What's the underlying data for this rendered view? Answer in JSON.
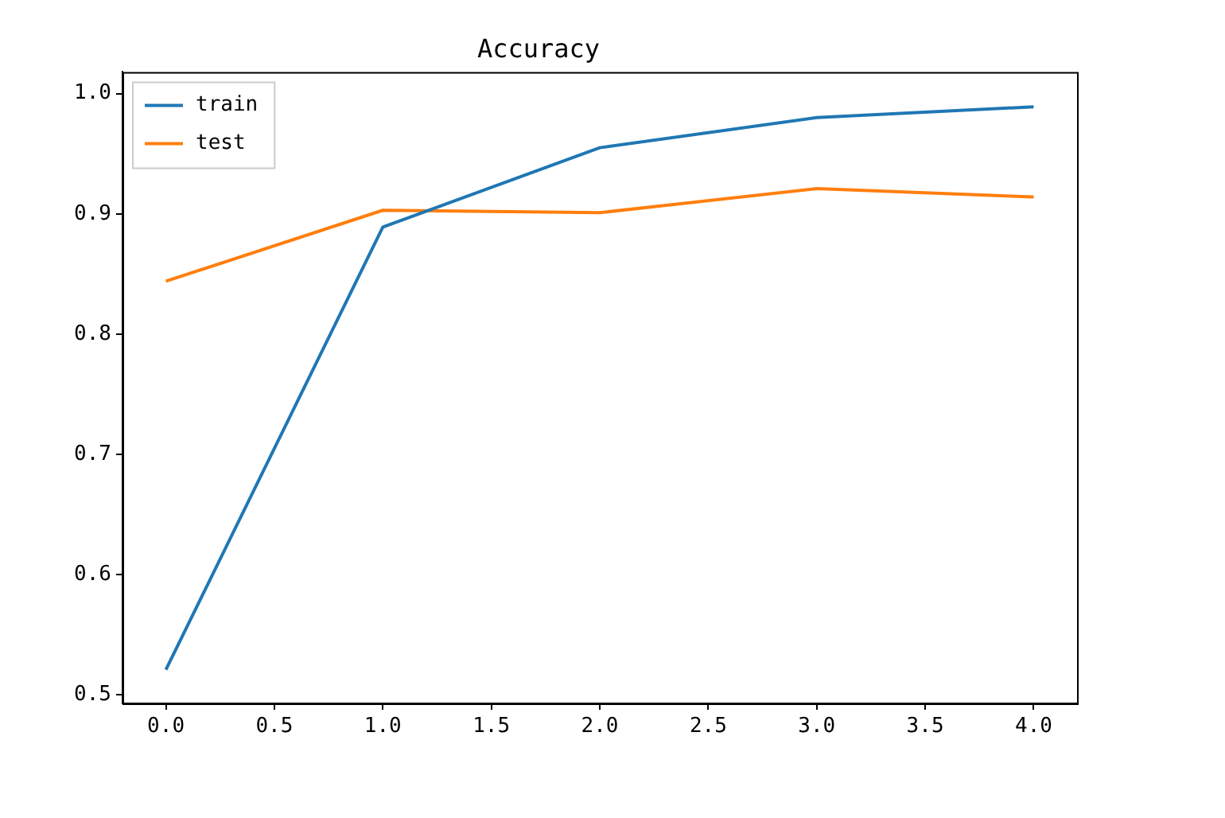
{
  "chart_data": {
    "type": "line",
    "title": "Accuracy",
    "x": [
      0,
      1,
      2,
      3,
      4
    ],
    "series": [
      {
        "name": "train",
        "color": "#1f77b4",
        "values": [
          0.521,
          0.889,
          0.955,
          0.98,
          0.989
        ]
      },
      {
        "name": "test",
        "color": "#ff7f0e",
        "values": [
          0.844,
          0.903,
          0.901,
          0.921,
          0.914
        ]
      }
    ],
    "xlim": [
      -0.2,
      4.2
    ],
    "ylim": [
      0.493,
      1.018
    ],
    "xticks": [
      {
        "value": 0,
        "label": "0.0"
      },
      {
        "value": 0.5,
        "label": "0.5"
      },
      {
        "value": 1,
        "label": "1.0"
      },
      {
        "value": 1.5,
        "label": "1.5"
      },
      {
        "value": 2,
        "label": "2.0"
      },
      {
        "value": 2.5,
        "label": "2.5"
      },
      {
        "value": 3,
        "label": "3.0"
      },
      {
        "value": 3.5,
        "label": "3.5"
      },
      {
        "value": 4,
        "label": "4.0"
      }
    ],
    "yticks": [
      {
        "value": 0.5,
        "label": "0.5"
      },
      {
        "value": 0.6,
        "label": "0.6"
      },
      {
        "value": 0.7,
        "label": "0.7"
      },
      {
        "value": 0.8,
        "label": "0.8"
      },
      {
        "value": 0.9,
        "label": "0.9"
      },
      {
        "value": 1,
        "label": "1.0"
      }
    ],
    "legend": "top left"
  }
}
